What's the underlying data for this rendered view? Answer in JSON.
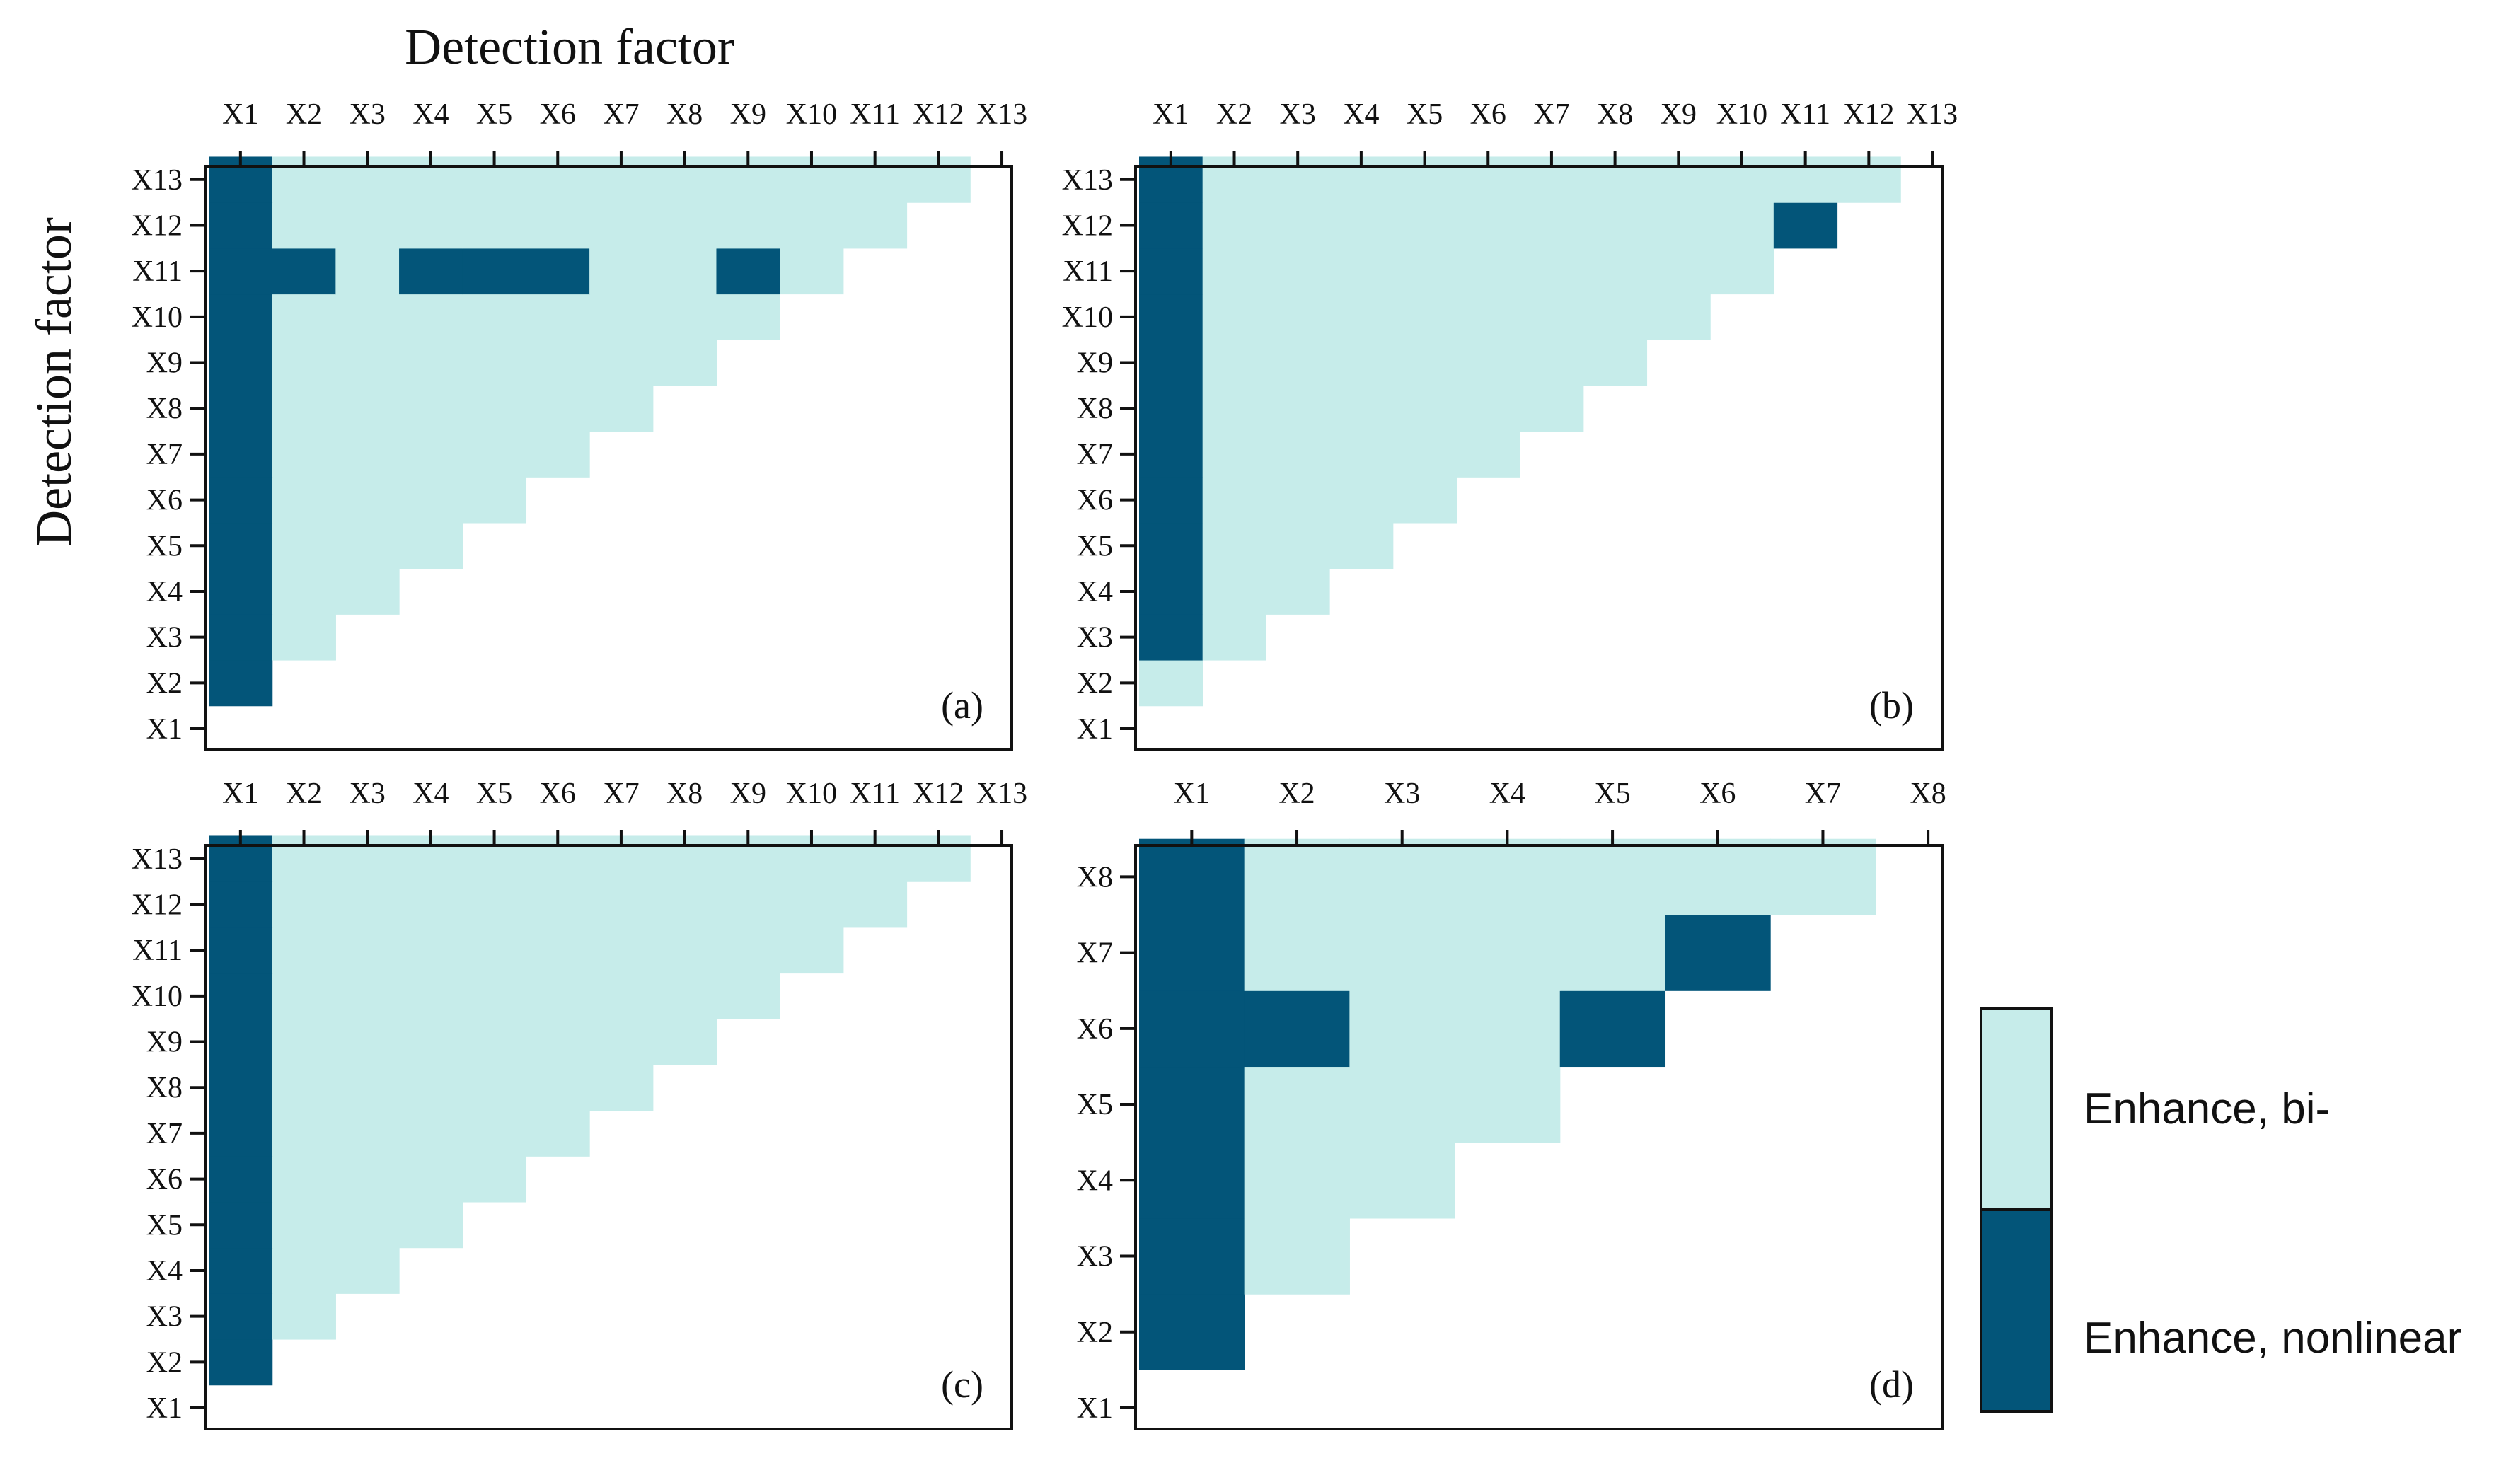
{
  "colors": {
    "enhance_bi": "#c6ecea",
    "enhance_nonlinear": "#035579",
    "frame": "#111111"
  },
  "axis_titles": {
    "x": "Detection factor",
    "y": "Detection factor"
  },
  "legend": {
    "items": [
      {
        "key": "bi",
        "label": "Enhance, bi-"
      },
      {
        "key": "nonlinear",
        "label": "Enhance, nonlinear"
      }
    ]
  },
  "chart_data": [
    {
      "type": "heatmap",
      "panel_label": "(a)",
      "factors": [
        "X1",
        "X2",
        "X3",
        "X4",
        "X5",
        "X6",
        "X7",
        "X8",
        "X9",
        "X10",
        "X11",
        "X12",
        "X13"
      ],
      "title": "",
      "xlabel": "Detection factor",
      "ylabel": "Detection factor",
      "note": "lower triangle: cell (row i, col j) with j < i; value 'nonlinear' or 'bi'",
      "nonlinear_cells": [
        [
          "X2",
          "X1"
        ],
        [
          "X3",
          "X1"
        ],
        [
          "X4",
          "X1"
        ],
        [
          "X5",
          "X1"
        ],
        [
          "X6",
          "X1"
        ],
        [
          "X7",
          "X1"
        ],
        [
          "X8",
          "X1"
        ],
        [
          "X9",
          "X1"
        ],
        [
          "X10",
          "X1"
        ],
        [
          "X11",
          "X1"
        ],
        [
          "X12",
          "X1"
        ],
        [
          "X13",
          "X1"
        ],
        [
          "X11",
          "X2"
        ],
        [
          "X11",
          "X4"
        ],
        [
          "X11",
          "X5"
        ],
        [
          "X11",
          "X6"
        ],
        [
          "X11",
          "X9"
        ]
      ],
      "default_value": "bi"
    },
    {
      "type": "heatmap",
      "panel_label": "(b)",
      "factors": [
        "X1",
        "X2",
        "X3",
        "X4",
        "X5",
        "X6",
        "X7",
        "X8",
        "X9",
        "X10",
        "X11",
        "X12",
        "X13"
      ],
      "title": "",
      "xlabel": "",
      "ylabel": "",
      "note": "lower triangle: cell (row i, col j) with j < i; value 'nonlinear' or 'bi'",
      "nonlinear_cells": [
        [
          "X3",
          "X1"
        ],
        [
          "X4",
          "X1"
        ],
        [
          "X5",
          "X1"
        ],
        [
          "X6",
          "X1"
        ],
        [
          "X7",
          "X1"
        ],
        [
          "X8",
          "X1"
        ],
        [
          "X9",
          "X1"
        ],
        [
          "X10",
          "X1"
        ],
        [
          "X11",
          "X1"
        ],
        [
          "X12",
          "X1"
        ],
        [
          "X13",
          "X1"
        ],
        [
          "X12",
          "X11"
        ]
      ],
      "default_value": "bi"
    },
    {
      "type": "heatmap",
      "panel_label": "(c)",
      "factors": [
        "X1",
        "X2",
        "X3",
        "X4",
        "X5",
        "X6",
        "X7",
        "X8",
        "X9",
        "X10",
        "X11",
        "X12",
        "X13"
      ],
      "title": "",
      "xlabel": "",
      "ylabel": "",
      "note": "lower triangle: cell (row i, col j) with j < i; value 'nonlinear' or 'bi'",
      "nonlinear_cells": [
        [
          "X2",
          "X1"
        ],
        [
          "X3",
          "X1"
        ],
        [
          "X4",
          "X1"
        ],
        [
          "X5",
          "X1"
        ],
        [
          "X6",
          "X1"
        ],
        [
          "X7",
          "X1"
        ],
        [
          "X8",
          "X1"
        ],
        [
          "X9",
          "X1"
        ],
        [
          "X10",
          "X1"
        ],
        [
          "X11",
          "X1"
        ],
        [
          "X12",
          "X1"
        ],
        [
          "X13",
          "X1"
        ]
      ],
      "default_value": "bi"
    },
    {
      "type": "heatmap",
      "panel_label": "(d)",
      "factors": [
        "X1",
        "X2",
        "X3",
        "X4",
        "X5",
        "X6",
        "X7",
        "X8"
      ],
      "title": "",
      "xlabel": "",
      "ylabel": "",
      "note": "lower triangle: cell (row i, col j) with j < i; value 'nonlinear' or 'bi'",
      "nonlinear_cells": [
        [
          "X2",
          "X1"
        ],
        [
          "X3",
          "X1"
        ],
        [
          "X4",
          "X1"
        ],
        [
          "X5",
          "X1"
        ],
        [
          "X6",
          "X1"
        ],
        [
          "X7",
          "X1"
        ],
        [
          "X8",
          "X1"
        ],
        [
          "X6",
          "X2"
        ],
        [
          "X6",
          "X5"
        ],
        [
          "X7",
          "X6"
        ]
      ],
      "default_value": "bi"
    }
  ]
}
